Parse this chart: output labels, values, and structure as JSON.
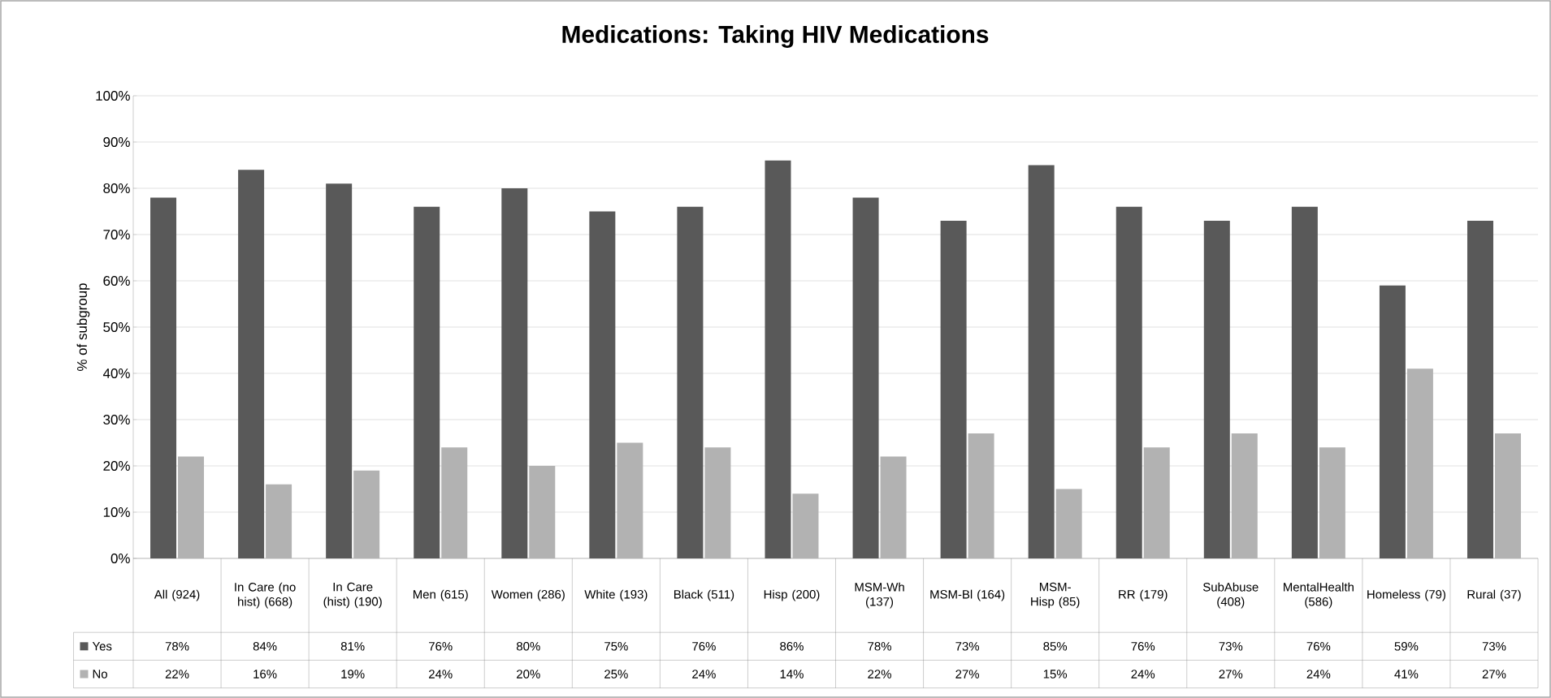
{
  "chart_data": {
    "type": "bar",
    "title": "Medications: Taking HIV Medications",
    "ylabel": "% of subgroup",
    "categories": [
      "All (924)",
      "In Care (no hist) (668)",
      "In Care (hist) (190)",
      "Men (615)",
      "Women (286)",
      "White (193)",
      "Black (511)",
      "Hisp (200)",
      "MSM-Wh (137)",
      "MSM-Bl (164)",
      "MSM-Hisp (85)",
      "RR (179)",
      "SubAbuse (408)",
      "MentalHealth (586)",
      "Homeless (79)",
      "Rural (37)"
    ],
    "series": [
      {
        "name": "Yes",
        "color": "#595959",
        "values": [
          78,
          84,
          81,
          76,
          80,
          75,
          76,
          86,
          78,
          73,
          85,
          76,
          73,
          76,
          59,
          73
        ],
        "value_labels": [
          "78%",
          "84%",
          "81%",
          "76%",
          "80%",
          "75%",
          "76%",
          "86%",
          "78%",
          "73%",
          "85%",
          "76%",
          "73%",
          "76%",
          "59%",
          "73%"
        ]
      },
      {
        "name": "No",
        "color": "#b2b2b2",
        "values": [
          22,
          16,
          19,
          24,
          20,
          25,
          24,
          14,
          22,
          27,
          15,
          24,
          27,
          24,
          41,
          27
        ],
        "value_labels": [
          "22%",
          "16%",
          "19%",
          "24%",
          "20%",
          "25%",
          "24%",
          "14%",
          "22%",
          "27%",
          "15%",
          "24%",
          "27%",
          "24%",
          "41%",
          "27%"
        ]
      }
    ],
    "ylim": [
      0,
      100
    ],
    "yticks": [
      {
        "value": 0,
        "label": "0%"
      },
      {
        "value": 10,
        "label": "10%"
      },
      {
        "value": 20,
        "label": "20%"
      },
      {
        "value": 30,
        "label": "30%"
      },
      {
        "value": 40,
        "label": "40%"
      },
      {
        "value": 50,
        "label": "50%"
      },
      {
        "value": 60,
        "label": "60%"
      },
      {
        "value": 70,
        "label": "70%"
      },
      {
        "value": 80,
        "label": "80%"
      },
      {
        "value": 90,
        "label": "90%"
      },
      {
        "value": 100,
        "label": "100%"
      }
    ],
    "grid": "y",
    "legend": "bottom left"
  }
}
